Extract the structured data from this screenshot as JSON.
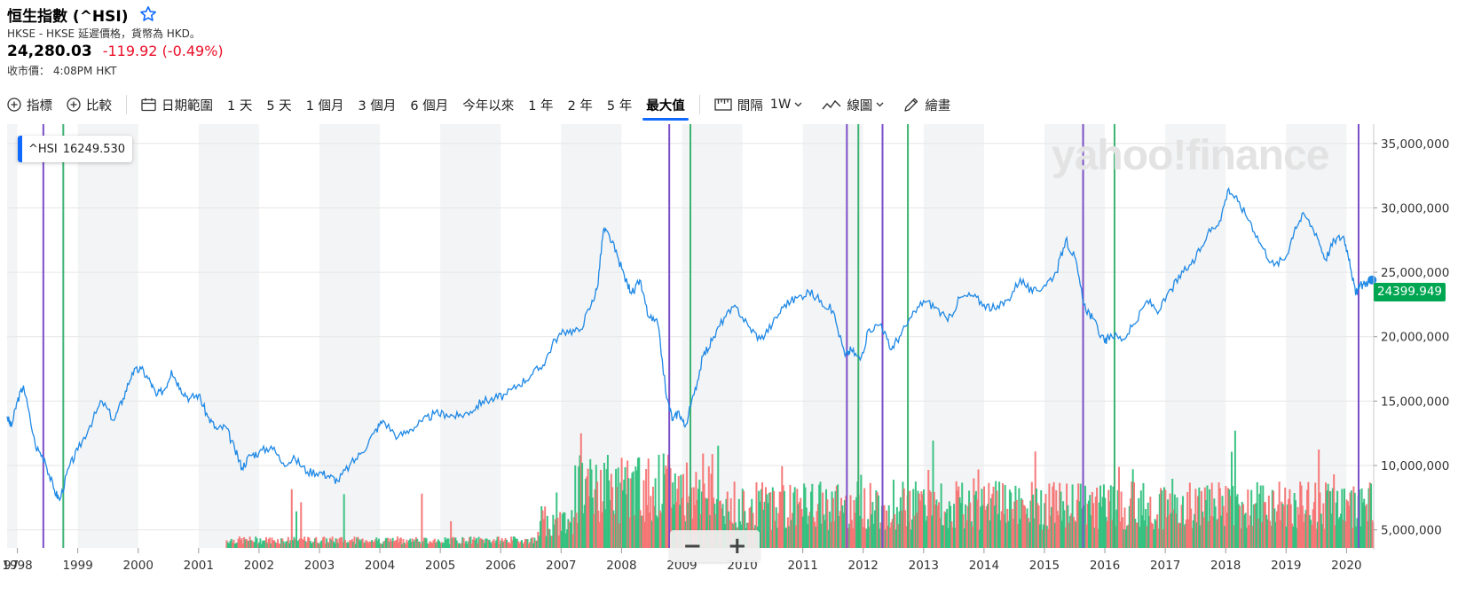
{
  "header": {
    "title": "恒生指數 (^HSI)",
    "subtitle": "HKSE - HKSE 延遲價格，貨幣為 HKD。",
    "price": "24,280.03",
    "change": "-119.92 (-0.49%)",
    "close_label": "收市價：",
    "close_time": "4:08PM HKT"
  },
  "toolbar": {
    "indicators": "指標",
    "compare": "比較",
    "date_range": "日期範圍",
    "ranges": [
      "1 天",
      "5 天",
      "1 個月",
      "3 個月",
      "6 個月",
      "今年以來",
      "1 年",
      "2 年",
      "5 年",
      "最大值"
    ],
    "active_range": "最大值",
    "interval_label": "間隔",
    "interval_value": "1W",
    "chart_type": "線圖",
    "draw": "繪畫"
  },
  "tooltip": {
    "symbol": "^HSI",
    "value": "16249.530"
  },
  "last_value_label": "24399.949",
  "watermark": "yahoo!finance",
  "zoom": {
    "minus": "−",
    "plus": "+"
  },
  "colors": {
    "line": "#1e88e5",
    "up": "#30c07d",
    "down": "#f57373",
    "purple_event": "#7b4fc8",
    "green_event": "#3cb371",
    "shade": "#f3f4f5",
    "last_label_bg": "#00a651"
  },
  "chart_data": {
    "type": "line",
    "title": "",
    "xlabel": "",
    "ylabel": "",
    "xlim": [
      1997.83,
      2020.45
    ],
    "ylim": [
      3600000,
      36500000
    ],
    "y_ticks": [
      5000000,
      10000000,
      15000000,
      20000000,
      25000000,
      30000000,
      35000000
    ],
    "y_tick_labels": [
      "5,000,000",
      "10,000,000",
      "15,000,000",
      "20,000,000",
      "25,000,000",
      "30,000,000",
      "35,000,000"
    ],
    "x_ticks": [
      1998,
      1999,
      2000,
      2001,
      2002,
      2003,
      2004,
      2005,
      2006,
      2007,
      2008,
      2009,
      2010,
      2011,
      2012,
      2013,
      2014,
      2015,
      2016,
      2017,
      2018,
      2019,
      2020
    ],
    "x_tick_labels": [
      "1998",
      "1999",
      "2000",
      "2001",
      "2002",
      "2003",
      "2004",
      "2005",
      "2006",
      "2007",
      "2008",
      "2009",
      "2010",
      "2011",
      "2012",
      "2013",
      "2014",
      "2015",
      "2016",
      "2017",
      "2018",
      "2019",
      "2020"
    ],
    "x_edge_label": "97",
    "series": [
      {
        "x": [
          1997.83,
          1997.9,
          1998.0,
          1998.1,
          1998.3,
          1998.45,
          1998.6,
          1998.7,
          1998.85,
          1999.0,
          1999.2,
          1999.4,
          1999.6,
          1999.75,
          1999.9,
          2000.05,
          2000.2,
          2000.3,
          2000.45,
          2000.55,
          2000.7,
          2000.85,
          2001.0,
          2001.15,
          2001.3,
          2001.45,
          2001.6,
          2001.72,
          2001.85,
          2002.0,
          2002.2,
          2002.4,
          2002.6,
          2002.8,
          2003.0,
          2003.15,
          2003.3,
          2003.5,
          2003.7,
          2003.9,
          2004.05,
          2004.3,
          2004.5,
          2004.7,
          2004.9,
          2005.1,
          2005.3,
          2005.5,
          2005.7,
          2005.9,
          2006.1,
          2006.3,
          2006.5,
          2006.7,
          2006.9,
          2007.1,
          2007.3,
          2007.5,
          2007.6,
          2007.7,
          2007.8,
          2007.95,
          2008.1,
          2008.2,
          2008.3,
          2008.45,
          2008.6,
          2008.75,
          2008.85,
          2008.95,
          2009.05,
          2009.2,
          2009.35,
          2009.5,
          2009.7,
          2009.9,
          2010.1,
          2010.3,
          2010.5,
          2010.7,
          2010.9,
          2011.1,
          2011.3,
          2011.5,
          2011.7,
          2011.8,
          2011.95,
          2012.1,
          2012.3,
          2012.45,
          2012.6,
          2012.8,
          2013.0,
          2013.2,
          2013.4,
          2013.6,
          2013.8,
          2014.0,
          2014.2,
          2014.4,
          2014.6,
          2014.8,
          2015.0,
          2015.2,
          2015.35,
          2015.5,
          2015.65,
          2015.8,
          2016.0,
          2016.1,
          2016.3,
          2016.5,
          2016.7,
          2016.9,
          2017.1,
          2017.3,
          2017.5,
          2017.7,
          2017.9,
          2018.05,
          2018.2,
          2018.4,
          2018.6,
          2018.8,
          2019.0,
          2019.15,
          2019.3,
          2019.5,
          2019.65,
          2019.8,
          2019.95,
          2020.05,
          2020.15,
          2020.22,
          2020.3,
          2020.38
        ],
        "y": [
          13800000,
          13000000,
          15000000,
          16200000,
          11500000,
          10500000,
          8200000,
          7300000,
          9800000,
          11200000,
          13100000,
          15000000,
          13500000,
          15200000,
          17200000,
          17500000,
          16500000,
          15400000,
          16000000,
          17400000,
          16000000,
          15200000,
          15500000,
          13800000,
          12800000,
          13000000,
          11200000,
          9800000,
          10800000,
          11000000,
          11500000,
          10200000,
          10500000,
          9500000,
          9500000,
          9200000,
          8800000,
          10000000,
          11000000,
          12500000,
          13500000,
          12200000,
          12800000,
          13400000,
          14000000,
          14000000,
          13800000,
          14200000,
          15000000,
          15200000,
          15500000,
          16300000,
          17000000,
          17800000,
          19800000,
          20500000,
          20400000,
          22500000,
          23800000,
          28300000,
          27800000,
          26000000,
          24000000,
          23400000,
          24400000,
          21500000,
          21000000,
          15200000,
          13500000,
          14200000,
          13000000,
          15500000,
          18500000,
          19700000,
          21500000,
          22300000,
          20800000,
          19800000,
          21000000,
          22500000,
          23000000,
          23500000,
          22800000,
          22000000,
          18500000,
          19000000,
          18200000,
          20600000,
          21000000,
          19000000,
          20000000,
          21500000,
          22800000,
          22300000,
          21200000,
          23000000,
          23200000,
          22500000,
          22100000,
          22900000,
          24500000,
          23400000,
          24000000,
          25000000,
          27500000,
          26200000,
          22500000,
          21400000,
          19500000,
          20200000,
          19800000,
          21000000,
          22800000,
          22000000,
          23700000,
          25000000,
          26000000,
          28000000,
          29000000,
          31500000,
          30500000,
          29000000,
          27000000,
          25500000,
          26200000,
          28500000,
          29500000,
          28000000,
          26000000,
          27500000,
          27800000,
          26000000,
          23300000,
          23900000,
          24100000,
          24400000
        ]
      }
    ],
    "volume_note": "weekly volume bars, green = up week, red = down week",
    "event_lines_purple": [
      1998.43,
      2008.79,
      2011.73,
      2012.32,
      2015.64,
      2020.2
    ],
    "event_lines_green": [
      1998.76,
      2009.14,
      2011.92,
      2012.74,
      2016.16
    ],
    "legend": "none",
    "grid": true
  }
}
